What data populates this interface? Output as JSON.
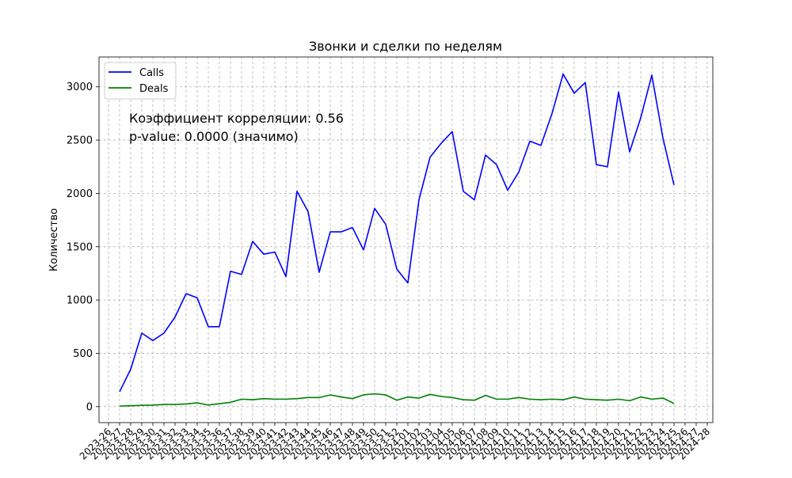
{
  "chart_data": {
    "type": "line",
    "title": "Звонки и сделки по неделям",
    "xlabel": "",
    "ylabel": "Количество",
    "ylim": [
      -150,
      3280
    ],
    "yticks": [
      0,
      500,
      1000,
      1500,
      2000,
      2500,
      3000
    ],
    "grid": true,
    "legend_position": "top-left",
    "x_tick_labels": [
      "2023-26",
      "2023-27",
      "2023-28",
      "2023-29",
      "2023-30",
      "2023-31",
      "2023-32",
      "2023-33",
      "2023-34",
      "2023-35",
      "2023-36",
      "2023-37",
      "2023-38",
      "2023-39",
      "2023-40",
      "2023-41",
      "2023-42",
      "2023-43",
      "2023-44",
      "2023-45",
      "2023-46",
      "2023-47",
      "2023-48",
      "2023-49",
      "2023-50",
      "2023-51",
      "2023-52",
      "2024-01",
      "2024-02",
      "2024-03",
      "2024-04",
      "2024-05",
      "2024-06",
      "2024-07",
      "2024-08",
      "2024-09",
      "2024-10",
      "2024-11",
      "2024-12",
      "2024-13",
      "2024-14",
      "2024-15",
      "2024-16",
      "2024-17",
      "2024-18",
      "2024-19",
      "2024-20",
      "2024-21",
      "2024-22",
      "2024-23",
      "2024-24",
      "2024-25",
      "2024-26",
      "2024-27",
      "2024-28"
    ],
    "x": [
      "2023-27",
      "2023-28",
      "2023-29",
      "2023-30",
      "2023-31",
      "2023-32",
      "2023-33",
      "2023-34",
      "2023-35",
      "2023-36",
      "2023-37",
      "2023-38",
      "2023-39",
      "2023-40",
      "2023-41",
      "2023-42",
      "2023-43",
      "2023-44",
      "2023-45",
      "2023-46",
      "2023-47",
      "2023-48",
      "2023-49",
      "2023-50",
      "2023-51",
      "2023-52",
      "2024-01",
      "2024-02",
      "2024-03",
      "2024-04",
      "2024-05",
      "2024-06",
      "2024-07",
      "2024-08",
      "2024-09",
      "2024-10",
      "2024-11",
      "2024-12",
      "2024-13",
      "2024-14",
      "2024-15",
      "2024-16",
      "2024-17",
      "2024-18",
      "2024-19",
      "2024-20",
      "2024-21",
      "2024-22",
      "2024-23",
      "2024-24",
      "2024-25"
    ],
    "series": [
      {
        "name": "Calls",
        "color": "#0000ff",
        "values": [
          140,
          350,
          690,
          620,
          690,
          840,
          1060,
          1020,
          750,
          750,
          1270,
          1240,
          1550,
          1430,
          1450,
          1220,
          2020,
          1830,
          1260,
          1640,
          1640,
          1680,
          1470,
          1860,
          1710,
          1290,
          1160,
          1940,
          2340,
          2470,
          2580,
          2020,
          1940,
          2360,
          2270,
          2030,
          2200,
          2490,
          2450,
          2750,
          3120,
          2940,
          3040,
          2270,
          2250,
          2950,
          2390,
          2710,
          3110,
          2520,
          2080
        ]
      },
      {
        "name": "Deals",
        "color": "#008000",
        "values": [
          5,
          8,
          12,
          14,
          20,
          20,
          25,
          35,
          15,
          28,
          40,
          70,
          65,
          75,
          70,
          70,
          75,
          85,
          85,
          110,
          90,
          75,
          110,
          120,
          110,
          60,
          90,
          80,
          115,
          95,
          85,
          65,
          60,
          105,
          70,
          70,
          85,
          70,
          65,
          70,
          65,
          90,
          70,
          65,
          60,
          70,
          55,
          90,
          70,
          80,
          30
        ]
      }
    ],
    "annotations": [
      "Коэффициент корреляции: 0.56",
      "p-value: 0.0000 (значимо)"
    ]
  }
}
